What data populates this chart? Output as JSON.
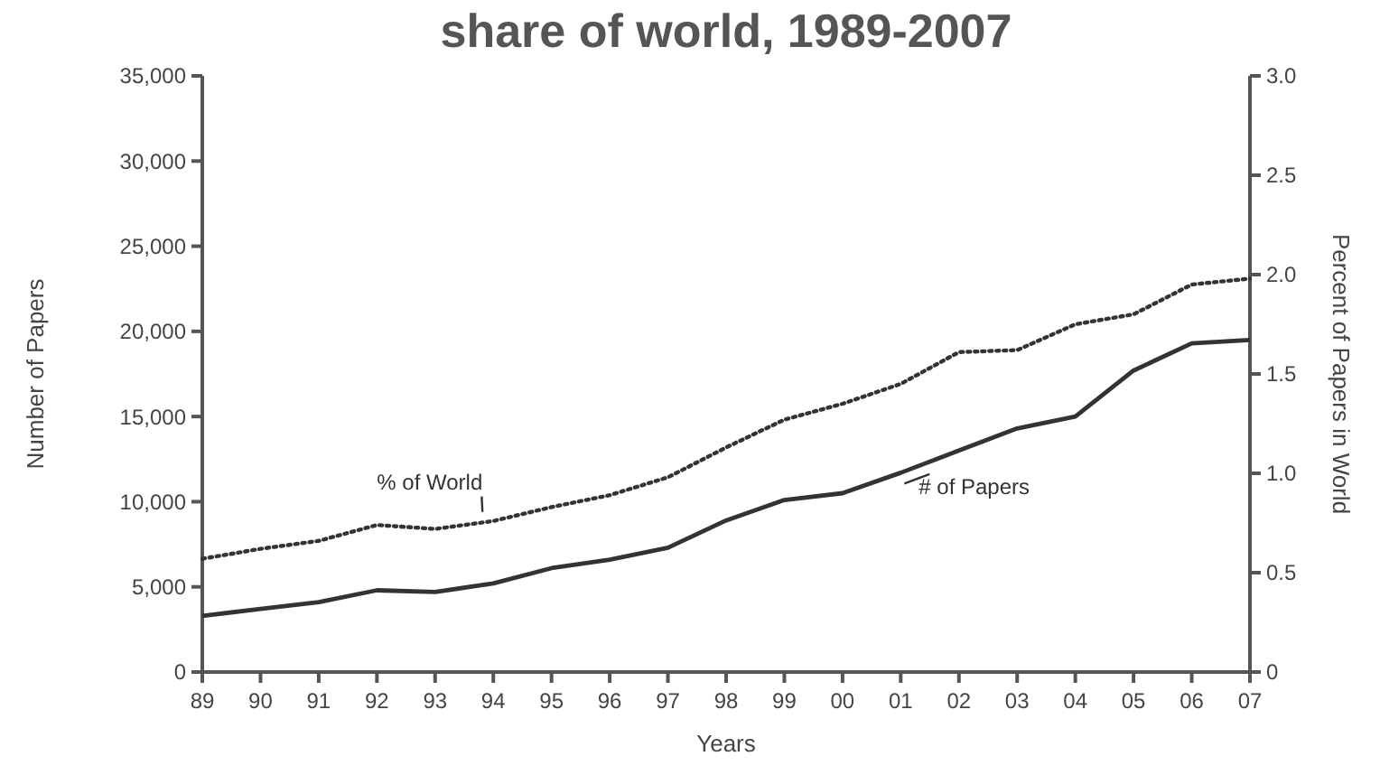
{
  "chart_data": {
    "type": "line",
    "title": "share of world, 1989-2007",
    "xlabel": "Years",
    "ylabel": "Number of Papers",
    "y2label": "Percent of Papers in World",
    "categories": [
      "89",
      "90",
      "91",
      "92",
      "93",
      "94",
      "95",
      "96",
      "97",
      "98",
      "99",
      "00",
      "01",
      "02",
      "03",
      "04",
      "05",
      "06",
      "07"
    ],
    "series": [
      {
        "name": "% of World",
        "color": "#333333",
        "axis": "y2",
        "line_style": "dotted",
        "values": [
          0.57,
          0.62,
          0.66,
          0.74,
          0.72,
          0.76,
          0.83,
          0.89,
          0.98,
          1.13,
          1.27,
          1.35,
          1.45,
          1.61,
          1.62,
          1.75,
          1.8,
          1.95,
          1.98
        ]
      },
      {
        "name": "# of Papers",
        "color": "#333333",
        "line_style": "solid",
        "values": [
          3300,
          3700,
          4100,
          4800,
          4700,
          5200,
          6100,
          6600,
          7300,
          8900,
          10100,
          10500,
          11700,
          13000,
          14300,
          15000,
          17700,
          19300,
          19500
        ]
      }
    ],
    "ylim": [
      0,
      35000
    ],
    "yticks": [
      0,
      {
        "value": 5000,
        "label": "5,000"
      },
      {
        "value": 10000,
        "label": "10,000"
      },
      {
        "value": 15000,
        "label": "15,000"
      },
      {
        "value": 20000,
        "label": "20,000"
      },
      {
        "value": 25000,
        "label": "25,000"
      },
      {
        "value": 30000,
        "label": "30,000"
      },
      {
        "value": 35000,
        "label": "35,000"
      }
    ],
    "y2lim": [
      0,
      3
    ],
    "y2ticks": [
      0,
      0.5,
      {
        "value": 1,
        "label": "1.0"
      },
      1.5,
      {
        "value": 2,
        "label": "2.0"
      },
      2.5,
      {
        "value": 3,
        "label": "3.0"
      }
    ],
    "grid": false,
    "legend": false,
    "marker": "none"
  }
}
